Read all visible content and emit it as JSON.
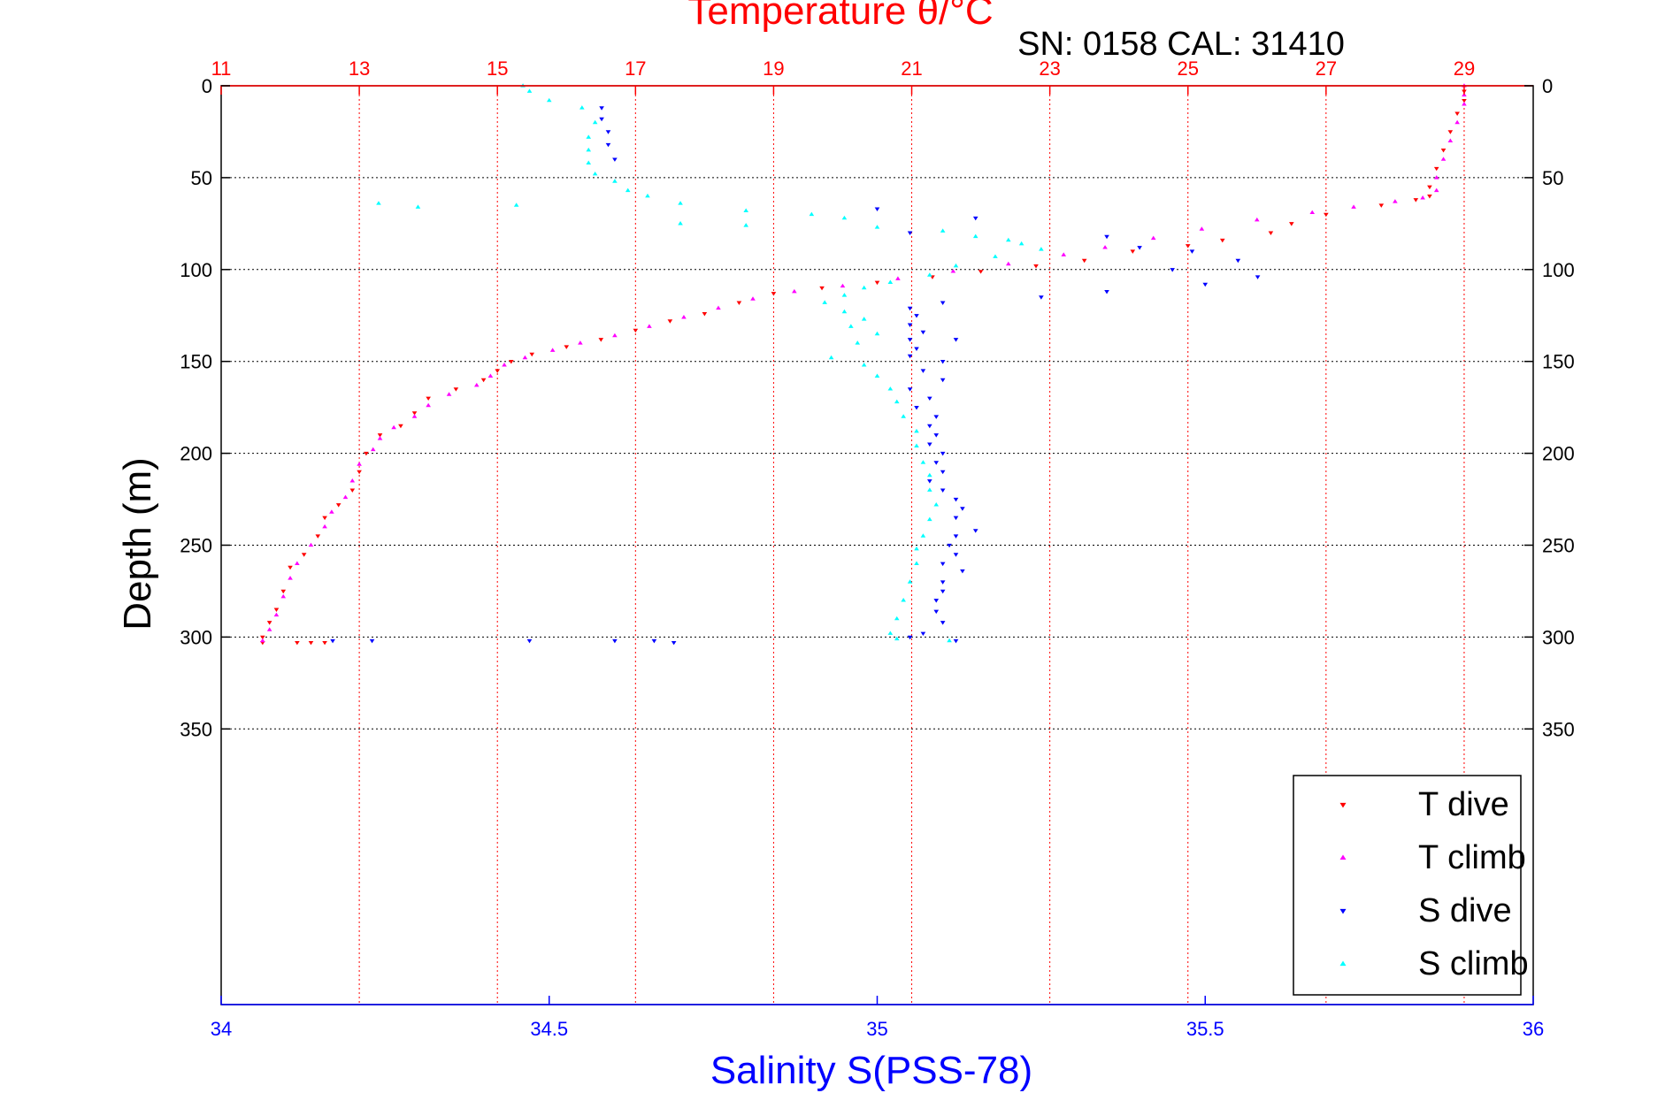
{
  "chart_data": {
    "type": "scatter",
    "title": "Temperature θ/°C",
    "serial_label": "SN: 0158  CAL: 31410",
    "xlabel_bottom": "Salinity S(PSS-78)",
    "ylabel": "Depth (m)",
    "y_reversed": true,
    "ylim": [
      0,
      500
    ],
    "y_ticks": [
      "0",
      "50",
      "100",
      "150",
      "200",
      "250",
      "300",
      "350"
    ],
    "x_top": {
      "lim": [
        11,
        30
      ],
      "ticks": [
        "11",
        "13",
        "15",
        "17",
        "19",
        "21",
        "23",
        "25",
        "27",
        "29"
      ],
      "color": "#ff0000"
    },
    "x_bottom": {
      "lim": [
        34,
        36
      ],
      "ticks": [
        "34",
        "34.5",
        "35",
        "35.5",
        "36"
      ],
      "color": "#0000ff"
    },
    "grid": true,
    "legend_position": "bottom-right",
    "series": [
      {
        "name": "T dive",
        "axis": "top",
        "color": "#ff0000",
        "marker": "triangle-down",
        "points": [
          [
            29.0,
            3
          ],
          [
            29.0,
            8
          ],
          [
            28.9,
            15
          ],
          [
            28.8,
            25
          ],
          [
            28.7,
            35
          ],
          [
            28.6,
            45
          ],
          [
            28.5,
            55
          ],
          [
            28.5,
            60
          ],
          [
            28.3,
            62
          ],
          [
            27.8,
            65
          ],
          [
            27.0,
            70
          ],
          [
            26.5,
            75
          ],
          [
            26.2,
            80
          ],
          [
            25.5,
            84
          ],
          [
            25.0,
            87
          ],
          [
            24.2,
            90
          ],
          [
            23.5,
            95
          ],
          [
            22.8,
            98
          ],
          [
            22.0,
            101
          ],
          [
            21.3,
            104
          ],
          [
            20.5,
            107
          ],
          [
            19.7,
            110
          ],
          [
            19.0,
            113
          ],
          [
            18.5,
            118
          ],
          [
            18.0,
            124
          ],
          [
            17.5,
            128
          ],
          [
            17.0,
            133
          ],
          [
            16.5,
            138
          ],
          [
            16.0,
            142
          ],
          [
            15.5,
            146
          ],
          [
            15.2,
            150
          ],
          [
            15.0,
            155
          ],
          [
            14.8,
            160
          ],
          [
            14.4,
            165
          ],
          [
            14.0,
            170
          ],
          [
            13.8,
            178
          ],
          [
            13.6,
            185
          ],
          [
            13.3,
            190
          ],
          [
            13.1,
            200
          ],
          [
            13.0,
            210
          ],
          [
            12.9,
            220
          ],
          [
            12.7,
            228
          ],
          [
            12.5,
            235
          ],
          [
            12.4,
            245
          ],
          [
            12.2,
            255
          ],
          [
            12.0,
            262
          ],
          [
            11.9,
            275
          ],
          [
            11.8,
            285
          ],
          [
            11.7,
            292
          ],
          [
            11.6,
            300
          ],
          [
            11.6,
            303
          ],
          [
            12.1,
            303
          ],
          [
            12.3,
            303
          ],
          [
            12.5,
            303
          ]
        ]
      },
      {
        "name": "T climb",
        "axis": "top",
        "color": "#ff00ff",
        "marker": "triangle-up",
        "points": [
          [
            29.0,
            0
          ],
          [
            29.0,
            5
          ],
          [
            29.0,
            10
          ],
          [
            28.9,
            20
          ],
          [
            28.8,
            30
          ],
          [
            28.7,
            40
          ],
          [
            28.6,
            50
          ],
          [
            28.6,
            57
          ],
          [
            28.4,
            61
          ],
          [
            28.0,
            63
          ],
          [
            27.4,
            66
          ],
          [
            26.8,
            69
          ],
          [
            26.0,
            73
          ],
          [
            25.2,
            78
          ],
          [
            24.5,
            83
          ],
          [
            23.8,
            88
          ],
          [
            23.2,
            92
          ],
          [
            22.4,
            97
          ],
          [
            21.6,
            101
          ],
          [
            20.8,
            105
          ],
          [
            20.0,
            109
          ],
          [
            19.3,
            112
          ],
          [
            18.7,
            116
          ],
          [
            18.2,
            121
          ],
          [
            17.7,
            126
          ],
          [
            17.2,
            131
          ],
          [
            16.7,
            136
          ],
          [
            16.2,
            140
          ],
          [
            15.8,
            144
          ],
          [
            15.4,
            148
          ],
          [
            15.1,
            152
          ],
          [
            14.9,
            158
          ],
          [
            14.7,
            163
          ],
          [
            14.3,
            168
          ],
          [
            14.0,
            174
          ],
          [
            13.8,
            180
          ],
          [
            13.5,
            186
          ],
          [
            13.3,
            192
          ],
          [
            13.2,
            198
          ],
          [
            13.0,
            206
          ],
          [
            12.9,
            215
          ],
          [
            12.8,
            224
          ],
          [
            12.6,
            232
          ],
          [
            12.5,
            240
          ],
          [
            12.3,
            250
          ],
          [
            12.1,
            260
          ],
          [
            12.0,
            268
          ],
          [
            11.9,
            278
          ],
          [
            11.8,
            288
          ],
          [
            11.7,
            296
          ],
          [
            11.6,
            302
          ]
        ]
      },
      {
        "name": "S dive",
        "axis": "bottom",
        "color": "#0000ff",
        "marker": "triangle-down",
        "points": [
          [
            34.58,
            12
          ],
          [
            34.58,
            18
          ],
          [
            34.59,
            25
          ],
          [
            34.59,
            32
          ],
          [
            34.6,
            40
          ],
          [
            35.0,
            67
          ],
          [
            35.15,
            72
          ],
          [
            35.05,
            80
          ],
          [
            35.35,
            82
          ],
          [
            35.4,
            88
          ],
          [
            35.48,
            90
          ],
          [
            35.55,
            95
          ],
          [
            35.45,
            100
          ],
          [
            35.58,
            104
          ],
          [
            35.5,
            108
          ],
          [
            35.35,
            112
          ],
          [
            35.25,
            115
          ],
          [
            35.1,
            118
          ],
          [
            35.05,
            121
          ],
          [
            35.06,
            125
          ],
          [
            35.05,
            130
          ],
          [
            35.07,
            134
          ],
          [
            35.05,
            138
          ],
          [
            35.12,
            138
          ],
          [
            35.06,
            143
          ],
          [
            35.05,
            147
          ],
          [
            35.1,
            150
          ],
          [
            35.07,
            155
          ],
          [
            35.1,
            160
          ],
          [
            35.05,
            165
          ],
          [
            35.08,
            170
          ],
          [
            35.06,
            175
          ],
          [
            35.09,
            180
          ],
          [
            35.08,
            185
          ],
          [
            35.09,
            190
          ],
          [
            35.08,
            195
          ],
          [
            35.1,
            200
          ],
          [
            35.09,
            205
          ],
          [
            35.1,
            210
          ],
          [
            35.08,
            215
          ],
          [
            35.1,
            220
          ],
          [
            35.12,
            225
          ],
          [
            35.13,
            230
          ],
          [
            35.12,
            235
          ],
          [
            35.15,
            242
          ],
          [
            35.12,
            245
          ],
          [
            35.11,
            250
          ],
          [
            35.12,
            255
          ],
          [
            35.1,
            260
          ],
          [
            35.13,
            264
          ],
          [
            35.1,
            270
          ],
          [
            35.1,
            275
          ],
          [
            35.09,
            280
          ],
          [
            35.09,
            286
          ],
          [
            35.1,
            292
          ],
          [
            35.07,
            298
          ],
          [
            35.05,
            300
          ],
          [
            35.12,
            302
          ],
          [
            34.17,
            302
          ],
          [
            34.23,
            302
          ],
          [
            34.47,
            302
          ],
          [
            34.6,
            302
          ],
          [
            34.66,
            302
          ],
          [
            34.69,
            303
          ]
        ]
      },
      {
        "name": "S climb",
        "axis": "bottom",
        "color": "#00ffff",
        "marker": "triangle-up",
        "points": [
          [
            34.46,
            0
          ],
          [
            34.47,
            3
          ],
          [
            34.5,
            8
          ],
          [
            34.55,
            12
          ],
          [
            34.57,
            20
          ],
          [
            34.56,
            28
          ],
          [
            34.56,
            35
          ],
          [
            34.56,
            42
          ],
          [
            34.57,
            48
          ],
          [
            34.6,
            52
          ],
          [
            34.62,
            57
          ],
          [
            34.65,
            60
          ],
          [
            34.24,
            64
          ],
          [
            34.3,
            66
          ],
          [
            34.45,
            65
          ],
          [
            34.7,
            64
          ],
          [
            34.8,
            68
          ],
          [
            34.9,
            70
          ],
          [
            34.95,
            72
          ],
          [
            34.7,
            75
          ],
          [
            34.8,
            76
          ],
          [
            35.0,
            77
          ],
          [
            35.1,
            79
          ],
          [
            35.15,
            82
          ],
          [
            35.2,
            84
          ],
          [
            35.22,
            86
          ],
          [
            35.25,
            89
          ],
          [
            35.18,
            93
          ],
          [
            35.12,
            98
          ],
          [
            35.08,
            103
          ],
          [
            35.02,
            107
          ],
          [
            34.98,
            110
          ],
          [
            34.95,
            114
          ],
          [
            34.92,
            118
          ],
          [
            34.95,
            123
          ],
          [
            34.98,
            127
          ],
          [
            34.96,
            131
          ],
          [
            35.0,
            135
          ],
          [
            34.97,
            140
          ],
          [
            34.93,
            148
          ],
          [
            34.98,
            152
          ],
          [
            35.0,
            158
          ],
          [
            35.02,
            165
          ],
          [
            35.03,
            172
          ],
          [
            35.04,
            180
          ],
          [
            35.06,
            188
          ],
          [
            35.06,
            196
          ],
          [
            35.07,
            205
          ],
          [
            35.08,
            212
          ],
          [
            35.08,
            220
          ],
          [
            35.09,
            228
          ],
          [
            35.08,
            236
          ],
          [
            35.07,
            245
          ],
          [
            35.06,
            252
          ],
          [
            35.06,
            260
          ],
          [
            35.05,
            270
          ],
          [
            35.04,
            280
          ],
          [
            35.03,
            290
          ],
          [
            35.02,
            298
          ],
          [
            35.03,
            301
          ],
          [
            35.11,
            302
          ]
        ]
      }
    ]
  }
}
